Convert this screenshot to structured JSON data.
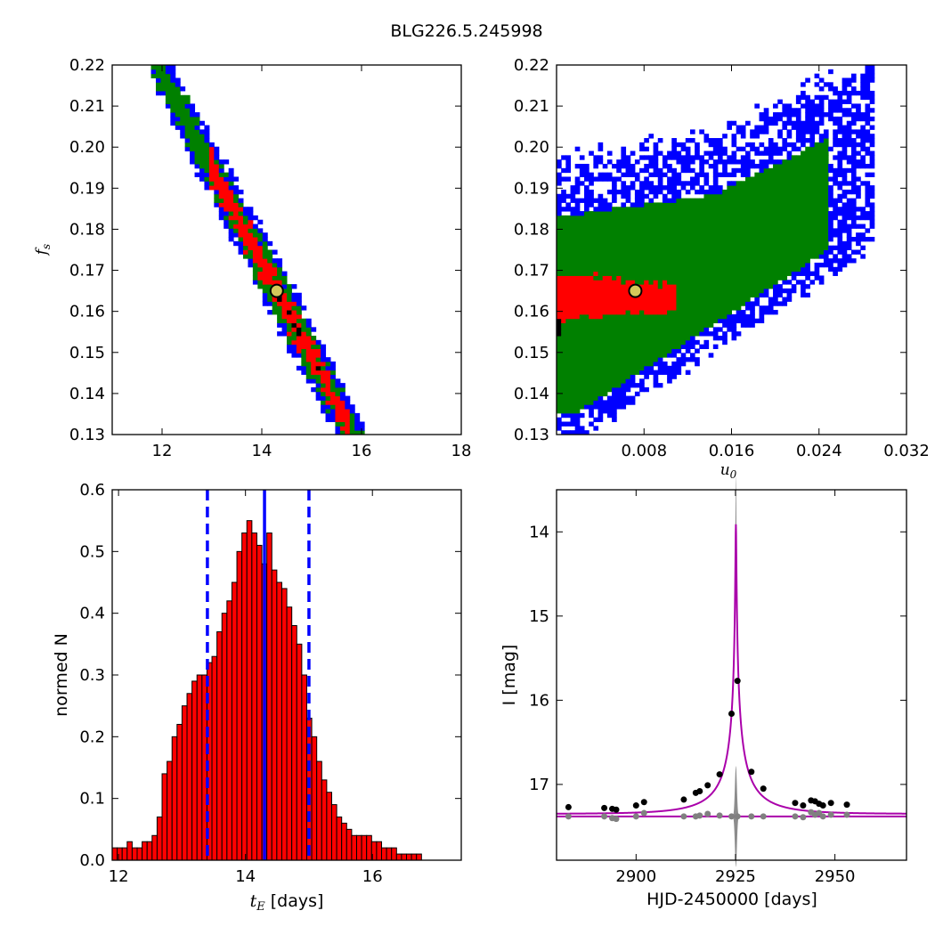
{
  "figure": {
    "title": "BLG226.5.245998"
  },
  "chart_data": [
    {
      "type": "heatmap",
      "panel": "top-left",
      "xlabel": "",
      "ylabel": "f_s",
      "xlim": [
        11,
        18
      ],
      "ylim": [
        0.13,
        0.22
      ],
      "xticks": [
        "12",
        "14",
        "16",
        "18"
      ],
      "yticks": [
        "0.13",
        "0.14",
        "0.15",
        "0.16",
        "0.17",
        "0.18",
        "0.19",
        "0.20",
        "0.21",
        "0.22"
      ],
      "levels": [
        {
          "name": "outer",
          "color": "#0000ff"
        },
        {
          "name": "middle",
          "color": "#008000"
        },
        {
          "name": "inner",
          "color": "#ff0000"
        },
        {
          "name": "core",
          "color": "#000000"
        }
      ],
      "best_fit": {
        "x": 14.3,
        "y": 0.165,
        "color": "#d4c85a"
      }
    },
    {
      "type": "heatmap",
      "panel": "top-right",
      "xlabel": "u_0",
      "ylabel": "",
      "xlim": [
        0,
        0.032
      ],
      "ylim": [
        0.13,
        0.22
      ],
      "xticks": [
        "0.008",
        "0.016",
        "0.024",
        "0.032"
      ],
      "yticks": [
        "0.13",
        "0.14",
        "0.15",
        "0.16",
        "0.17",
        "0.18",
        "0.19",
        "0.20",
        "0.21",
        "0.22"
      ],
      "levels": [
        {
          "name": "outer",
          "color": "#0000ff"
        },
        {
          "name": "middle",
          "color": "#008000"
        },
        {
          "name": "inner",
          "color": "#ff0000"
        },
        {
          "name": "core",
          "color": "#000000"
        }
      ],
      "best_fit": {
        "x": 0.0072,
        "y": 0.165,
        "color": "#d4c85a"
      }
    },
    {
      "type": "bar",
      "panel": "bottom-left",
      "xlabel": "t_E [days]",
      "ylabel": "normed N",
      "xlim": [
        11.9,
        17.4
      ],
      "ylim": [
        0,
        0.6
      ],
      "xticks": [
        "12",
        "14",
        "16"
      ],
      "yticks": [
        "0.0",
        "0.1",
        "0.2",
        "0.3",
        "0.4",
        "0.5",
        "0.6"
      ],
      "bin_start": 11.9,
      "bin_width": 0.0786,
      "values": [
        0.02,
        0.02,
        0.02,
        0.03,
        0.02,
        0.02,
        0.03,
        0.03,
        0.04,
        0.07,
        0.14,
        0.16,
        0.2,
        0.22,
        0.25,
        0.27,
        0.29,
        0.3,
        0.3,
        0.32,
        0.33,
        0.37,
        0.4,
        0.42,
        0.45,
        0.5,
        0.53,
        0.55,
        0.53,
        0.51,
        0.48,
        0.53,
        0.47,
        0.45,
        0.44,
        0.41,
        0.38,
        0.35,
        0.3,
        0.23,
        0.2,
        0.16,
        0.13,
        0.11,
        0.09,
        0.07,
        0.06,
        0.05,
        0.04,
        0.04,
        0.04,
        0.04,
        0.03,
        0.03,
        0.02,
        0.02,
        0.02,
        0.01,
        0.01,
        0.01,
        0.01,
        0.01,
        0.0,
        0.0,
        0.0,
        0.0,
        0.0,
        0.0,
        0.0,
        0.0
      ],
      "bar_color": "#ff0000",
      "median": 14.3,
      "lower": 13.4,
      "upper": 15.0,
      "line_color": "#0000ff"
    },
    {
      "type": "line",
      "panel": "bottom-right",
      "xlabel": "HJD-2450000 [days]",
      "ylabel": "I [mag]",
      "xlim": [
        2880,
        2968
      ],
      "ylim": [
        17.9,
        13.5
      ],
      "y_inverted": true,
      "xticks": [
        "2900",
        "2925",
        "2950"
      ],
      "yticks": [
        "14",
        "15",
        "16",
        "17"
      ],
      "model": {
        "t0": 2925.1,
        "tE": 14.3,
        "u0": 0.0072,
        "fs": 0.165,
        "I_base": 17.35,
        "color": "#aa00aa"
      },
      "baseline_mag": 17.38,
      "points": {
        "x": [
          2883,
          2892,
          2894,
          2895,
          2900,
          2902,
          2912,
          2915,
          2916,
          2918,
          2921,
          2924,
          2925.5,
          2929,
          2932,
          2940,
          2942,
          2944,
          2945,
          2946,
          2947,
          2949,
          2953
        ],
        "y": [
          17.27,
          17.28,
          17.29,
          17.3,
          17.25,
          17.21,
          17.18,
          17.1,
          17.08,
          17.01,
          16.88,
          16.16,
          15.77,
          16.85,
          17.05,
          17.22,
          17.25,
          17.19,
          17.2,
          17.23,
          17.25,
          17.22,
          17.24
        ],
        "color": "#000000"
      },
      "residual_points": {
        "x": [
          2883,
          2892,
          2894,
          2895,
          2900,
          2902,
          2912,
          2915,
          2916,
          2918,
          2921,
          2924,
          2925.5,
          2929,
          2932,
          2940,
          2942,
          2944,
          2945,
          2946,
          2947,
          2949,
          2953
        ],
        "y": [
          17.38,
          17.38,
          17.4,
          17.41,
          17.38,
          17.34,
          17.38,
          17.38,
          17.37,
          17.35,
          17.37,
          17.38,
          17.38,
          17.38,
          17.38,
          17.38,
          17.39,
          17.33,
          17.36,
          17.34,
          17.38,
          17.36,
          17.36
        ],
        "color": "#808080"
      }
    }
  ]
}
